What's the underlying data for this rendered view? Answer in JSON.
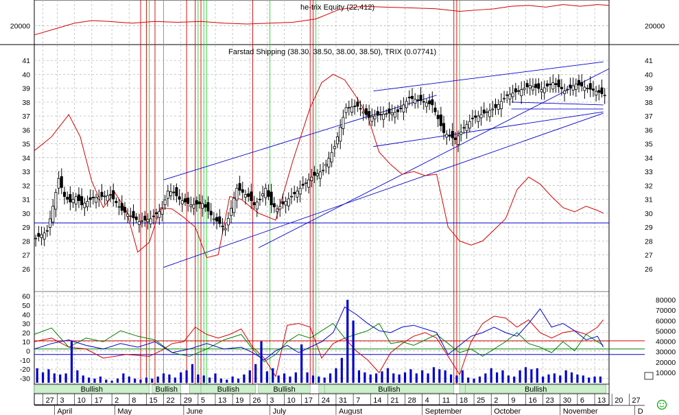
{
  "chart_data": [
    {
      "type": "line",
      "title": "he-trix Equity (22,412)",
      "ylim": [
        18000,
        22800
      ],
      "yticks": [
        20000
      ],
      "tick_labels": [
        "20000"
      ],
      "color": "#d40000",
      "x_range": [
        0,
        200
      ],
      "series": [
        {
          "name": "Equity",
          "x": [
            0,
            8,
            14,
            20,
            26,
            34,
            42,
            50,
            58,
            66,
            74,
            82,
            90,
            98,
            106,
            114,
            122,
            132,
            140,
            148,
            156,
            160,
            166,
            172,
            178,
            184,
            190,
            196,
            200
          ],
          "values": [
            18900,
            19700,
            20300,
            20600,
            20500,
            20300,
            20500,
            20400,
            20500,
            20300,
            20200,
            20300,
            20400,
            20800,
            21900,
            22300,
            22200,
            22100,
            22000,
            21700,
            21900,
            22000,
            22300,
            22400,
            22200,
            22500,
            22300,
            22500,
            22400
          ]
        }
      ]
    },
    {
      "type": "candlestick",
      "title": "Farstad Shipping (38.30, 38.50, 38.00, 38.50), TRIX (0.07741)",
      "ylim": [
        25,
        41.5
      ],
      "yticks": [
        26,
        27,
        28,
        29,
        30,
        31,
        32,
        33,
        34,
        35,
        36,
        37,
        38,
        39,
        40,
        41
      ],
      "tick_labels": [
        "26",
        "27",
        "28",
        "29",
        "30",
        "31",
        "32",
        "33",
        "34",
        "35",
        "36",
        "37",
        "38",
        "39",
        "40",
        "41"
      ],
      "x_range": [
        0,
        200
      ],
      "horizontal_line": 29.3,
      "price_waypoints": {
        "x": [
          0,
          4,
          6,
          8,
          10,
          12,
          14,
          16,
          20,
          26,
          30,
          36,
          40,
          44,
          46,
          48,
          50,
          54,
          58,
          62,
          66,
          70,
          74,
          76,
          78,
          80,
          82,
          84,
          90,
          96,
          100,
          104,
          106,
          108,
          112,
          116,
          120,
          126,
          130,
          134,
          138,
          142,
          146,
          150,
          152,
          156,
          160,
          164,
          168,
          172,
          176,
          180,
          184,
          188,
          192,
          196,
          198
        ],
        "values": [
          28.2,
          28.7,
          30.5,
          32.5,
          31.2,
          30.8,
          31.2,
          30.6,
          31.1,
          31.3,
          30.2,
          29.4,
          29.6,
          30.3,
          31.6,
          31.5,
          31.0,
          30.6,
          30.7,
          29.6,
          28.9,
          31.8,
          31.2,
          30.6,
          31.0,
          31.8,
          30.6,
          30.3,
          31.4,
          32.6,
          33.1,
          34.8,
          36.2,
          37.6,
          37.7,
          36.9,
          37.1,
          37.3,
          38.3,
          38.1,
          37.8,
          35.8,
          35.3,
          36.4,
          36.8,
          37.2,
          37.6,
          38.5,
          38.8,
          39.2,
          38.9,
          39.4,
          38.8,
          39.3,
          39.0,
          38.7,
          38.5
        ]
      },
      "overlays": [
        {
          "name": "TRIX",
          "color": "#d40000",
          "x": [
            0,
            6,
            12,
            16,
            20,
            24,
            28,
            32,
            36,
            40,
            44,
            48,
            52,
            56,
            60,
            64,
            68,
            72,
            78,
            84,
            90,
            96,
            100,
            104,
            108,
            112,
            116,
            120,
            124,
            128,
            132,
            136,
            140,
            144,
            148,
            152,
            156,
            160,
            164,
            168,
            172,
            176,
            180,
            184,
            188,
            192,
            196,
            198
          ],
          "values": [
            34.5,
            35.5,
            37.1,
            35.5,
            32.3,
            30.4,
            31.5,
            30.2,
            27.2,
            27.9,
            30.4,
            30.3,
            29.7,
            29.0,
            26.8,
            27.0,
            31.2,
            31.0,
            30.0,
            29.5,
            33.8,
            37.6,
            39.4,
            40.0,
            39.6,
            38.4,
            37.0,
            34.4,
            33.5,
            32.8,
            33.0,
            32.7,
            32.8,
            29.0,
            28.0,
            27.7,
            28.0,
            28.8,
            29.6,
            31.7,
            32.6,
            32.1,
            31.2,
            30.4,
            30.1,
            30.5,
            30.2,
            30.0
          ]
        }
      ],
      "trend_lines": [
        {
          "from": [
            45,
            32.4
          ],
          "to": [
            140,
            38.5
          ]
        },
        {
          "from": [
            45,
            26.1
          ],
          "to": [
            198,
            37.2
          ]
        },
        {
          "from": [
            78,
            27.5
          ],
          "to": [
            200,
            40.4
          ]
        },
        {
          "from": [
            118,
            38.8
          ],
          "to": [
            198,
            40.9
          ]
        },
        {
          "from": [
            118,
            34.8
          ],
          "to": [
            198,
            37.3
          ]
        },
        {
          "from": [
            166,
            37.5
          ],
          "to": [
            198,
            37.5
          ]
        },
        {
          "from": [
            166,
            38.0
          ],
          "to": [
            198,
            37.8
          ]
        }
      ]
    },
    {
      "type": "line",
      "title": "",
      "ylim": [
        -35,
        65
      ],
      "yticks": [
        -30,
        -20,
        -10,
        0,
        10,
        20,
        30,
        40,
        50,
        60
      ],
      "tick_labels": [
        "-30",
        "-20",
        "-10",
        "0",
        "10",
        "20",
        "30",
        "40",
        "50",
        "60"
      ],
      "right_ylim": [
        0,
        88000
      ],
      "right_yticks": [
        10000,
        20000,
        30000,
        40000,
        50000,
        60000,
        70000,
        80000
      ],
      "right_tick_labels": [
        "10000",
        "20000",
        "30000",
        "40000",
        "50000",
        "60000",
        "70000",
        "80000"
      ],
      "x_range": [
        0,
        200
      ],
      "reference_lines": [
        {
          "value": 11,
          "color": "#d40000"
        },
        {
          "value": 2,
          "color": "#008000"
        },
        {
          "value": -4,
          "color": "#0000cc"
        }
      ],
      "series": [
        {
          "name": "",
          "color": "#d40000",
          "x": [
            0,
            6,
            12,
            18,
            24,
            32,
            40,
            44,
            48,
            52,
            56,
            60,
            64,
            68,
            72,
            76,
            80,
            84,
            88,
            92,
            96,
            100,
            104,
            108,
            112,
            116,
            120,
            124,
            128,
            132,
            136,
            140,
            144,
            148,
            152,
            156,
            160,
            164,
            168,
            172,
            176,
            180,
            184,
            188,
            192,
            196,
            198
          ],
          "values": [
            10,
            14,
            4,
            2,
            -8,
            -4,
            -6,
            0,
            8,
            10,
            26,
            18,
            14,
            18,
            24,
            4,
            -8,
            -28,
            28,
            30,
            26,
            -8,
            8,
            14,
            0,
            -10,
            -24,
            -2,
            8,
            16,
            20,
            14,
            -6,
            -26,
            10,
            30,
            38,
            36,
            26,
            34,
            20,
            14,
            20,
            22,
            18,
            26,
            34
          ]
        },
        {
          "name": "",
          "color": "#008000",
          "x": [
            0,
            6,
            12,
            18,
            24,
            30,
            36,
            42,
            48,
            54,
            60,
            66,
            72,
            76,
            80,
            84,
            88,
            92,
            96,
            100,
            104,
            108,
            112,
            116,
            120,
            124,
            128,
            132,
            136,
            140,
            144,
            148,
            152,
            156,
            160,
            164,
            168,
            172,
            176,
            180,
            184,
            188,
            192,
            196,
            198
          ],
          "values": [
            18,
            25,
            4,
            14,
            10,
            22,
            16,
            12,
            -2,
            -6,
            2,
            12,
            18,
            2,
            -12,
            -4,
            10,
            18,
            14,
            22,
            30,
            14,
            18,
            22,
            30,
            8,
            10,
            6,
            12,
            18,
            8,
            -2,
            2,
            -6,
            2,
            10,
            20,
            8,
            4,
            -2,
            10,
            0,
            18,
            10,
            6
          ]
        },
        {
          "name": "",
          "color": "#0000cc",
          "x": [
            0,
            6,
            12,
            18,
            24,
            30,
            36,
            42,
            48,
            54,
            60,
            66,
            72,
            76,
            80,
            84,
            88,
            92,
            96,
            100,
            104,
            108,
            112,
            116,
            120,
            124,
            128,
            132,
            136,
            140,
            144,
            148,
            152,
            156,
            160,
            164,
            168,
            172,
            176,
            180,
            184,
            188,
            192,
            196,
            198
          ],
          "values": [
            2,
            8,
            12,
            6,
            2,
            8,
            4,
            10,
            -2,
            2,
            8,
            2,
            4,
            -2,
            -10,
            0,
            6,
            -2,
            4,
            10,
            20,
            48,
            40,
            30,
            22,
            20,
            26,
            28,
            24,
            20,
            -4,
            6,
            16,
            20,
            26,
            20,
            16,
            30,
            46,
            26,
            30,
            22,
            12,
            16,
            4
          ]
        },
        {
          "name": "",
          "color": "#0000cc",
          "role": "volume",
          "x": [
            1,
            3,
            5,
            7,
            9,
            11,
            13,
            15,
            17,
            19,
            21,
            23,
            25,
            27,
            29,
            31,
            33,
            35,
            37,
            39,
            41,
            43,
            45,
            47,
            49,
            51,
            53,
            55,
            57,
            59,
            61,
            63,
            65,
            67,
            69,
            71,
            73,
            75,
            77,
            79,
            81,
            83,
            85,
            87,
            89,
            91,
            93,
            95,
            97,
            99,
            101,
            103,
            105,
            107,
            109,
            111,
            113,
            115,
            117,
            119,
            121,
            123,
            125,
            127,
            129,
            131,
            133,
            135,
            137,
            139,
            141,
            143,
            145,
            147,
            149,
            151,
            153,
            155,
            157,
            159,
            161,
            163,
            165,
            167,
            169,
            171,
            173,
            175,
            177,
            179,
            181,
            183,
            185,
            187,
            189,
            191,
            193,
            195,
            197
          ],
          "values": [
            14000,
            10000,
            13000,
            9000,
            8000,
            9000,
            40000,
            12000,
            7000,
            5000,
            4000,
            6000,
            3000,
            2000,
            4000,
            9000,
            6000,
            4000,
            3000,
            5000,
            4000,
            6000,
            9000,
            8000,
            5000,
            10000,
            12000,
            18000,
            8000,
            7000,
            5000,
            9000,
            4000,
            3000,
            6000,
            4000,
            8000,
            12000,
            18000,
            40000,
            11000,
            14000,
            7000,
            9000,
            6000,
            10000,
            37000,
            10000,
            7000,
            6000,
            5000,
            9000,
            14000,
            24000,
            80000,
            60000,
            12000,
            10000,
            8000,
            9000,
            11000,
            14000,
            9000,
            8000,
            10000,
            13000,
            9000,
            12000,
            9000,
            15000,
            13000,
            12000,
            8000,
            7000,
            12000,
            5000,
            4000,
            6000,
            9000,
            14000,
            10000,
            12000,
            7000,
            6000,
            12000,
            15000,
            13000,
            14000,
            6000,
            8000,
            9000,
            7000,
            12000,
            10000,
            8000,
            7000,
            5000,
            6000,
            6000
          ]
        }
      ]
    }
  ],
  "trend_bands": [
    {
      "from": 0,
      "to": 40,
      "label": "Bullish"
    },
    {
      "from": 41,
      "to": 51,
      "label": "Bullish"
    },
    {
      "from": 54,
      "to": 58,
      "label": ""
    },
    {
      "from": 58,
      "to": 77,
      "label": "Bullish"
    },
    {
      "from": 78,
      "to": 96,
      "label": "Bullish"
    },
    {
      "from": 99,
      "to": 101,
      "label": ""
    },
    {
      "from": 101,
      "to": 146,
      "label": "Bullish"
    },
    {
      "from": 148,
      "to": 150,
      "label": ""
    },
    {
      "from": 150,
      "to": 199,
      "label": "Bullish"
    }
  ],
  "signal_lines": {
    "red": [
      37,
      39,
      42,
      53,
      56,
      58,
      76,
      96,
      97,
      146,
      147
    ],
    "green": [
      40,
      45,
      57,
      59,
      60,
      82,
      98,
      148
    ]
  },
  "x_axis": {
    "days": [
      "27",
      "3",
      "10",
      "17",
      "2",
      "8",
      "15",
      "22",
      "29",
      "5",
      "13",
      "19",
      "26",
      "3",
      "10",
      "17",
      "24",
      "31",
      "7",
      "14",
      "21",
      "28",
      "4",
      "11",
      "18",
      "25",
      "2",
      "9",
      "16",
      "23",
      "30",
      "6",
      "13",
      "20",
      "27"
    ],
    "day_x": [
      3,
      8,
      14,
      20,
      27,
      33,
      39,
      45,
      51,
      57,
      63,
      69,
      75,
      81,
      87,
      93,
      99,
      105,
      111,
      117,
      123,
      129,
      135,
      141,
      147,
      153,
      159,
      165,
      171,
      177,
      183,
      189,
      195,
      201,
      207
    ],
    "months": [
      "April",
      "May",
      "June",
      "July",
      "August",
      "September",
      "October",
      "November",
      "D"
    ],
    "month_x": [
      7,
      28,
      52,
      82,
      105,
      135,
      159,
      183,
      209
    ]
  },
  "icon": "smiley-icon"
}
